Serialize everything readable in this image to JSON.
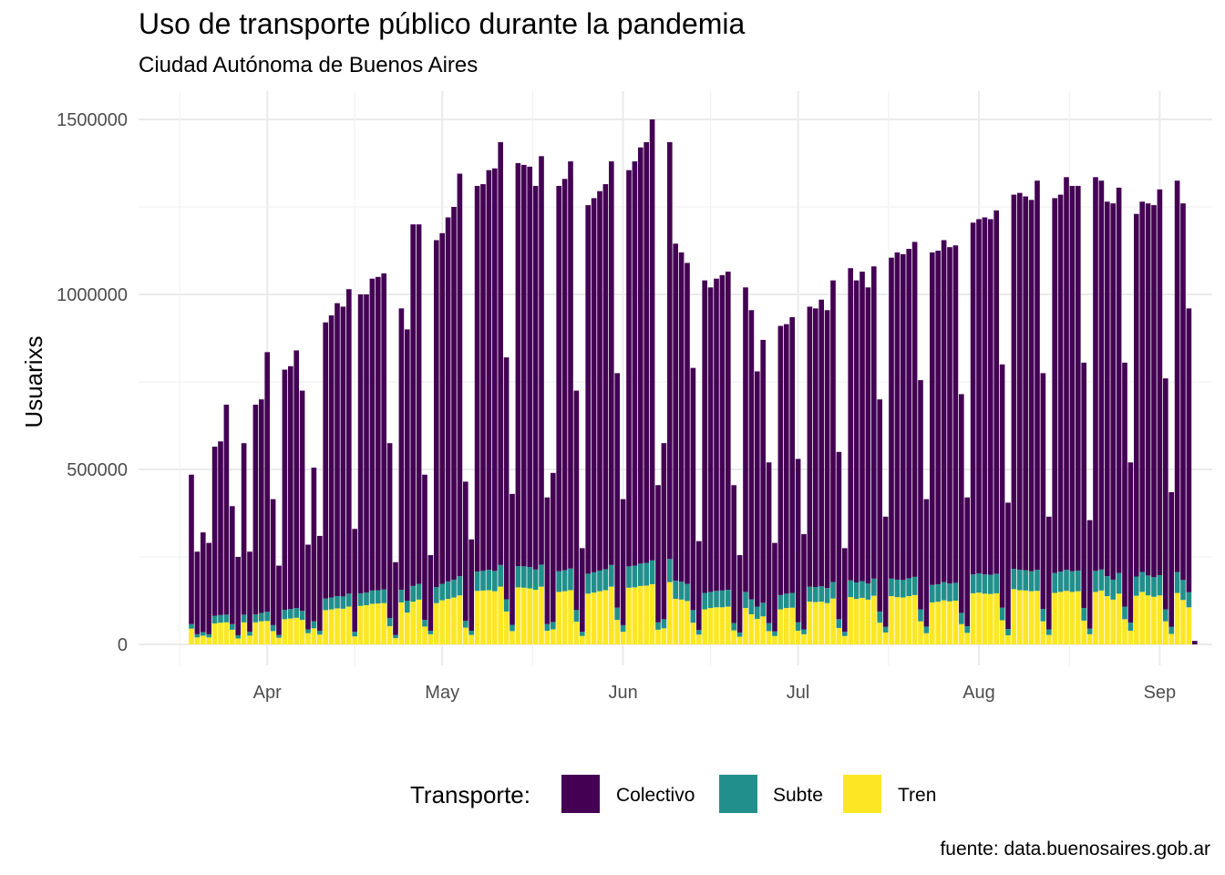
{
  "chart_data": {
    "type": "bar",
    "stacked": true,
    "title": "Uso de transporte público durante la pandemia",
    "subtitle": "Ciudad Autónoma de Buenos Aires",
    "caption": "fuente: data.buenosaires.gob.ar",
    "xlabel": "",
    "ylabel": "Usuarixs",
    "ylim": [
      0,
      1500000
    ],
    "y_ticks": [
      "0",
      "500000",
      "1000000",
      "1500000"
    ],
    "y_tick_values": [
      0,
      500000,
      1000000,
      1500000
    ],
    "x_ticks": [
      "Apr",
      "May",
      "Jun",
      "Jul",
      "Aug",
      "Sep"
    ],
    "x_tick_dates": [
      "2020-04-01",
      "2020-05-01",
      "2020-06-01",
      "2020-07-01",
      "2020-08-01",
      "2020-09-01"
    ],
    "date_range": [
      "2020-03-19",
      "2020-09-04"
    ],
    "grid": true,
    "legend": {
      "title": "Transporte:",
      "position": "bottom"
    },
    "series": [
      {
        "name": "Colectivo",
        "color": "#440154"
      },
      {
        "name": "Subte",
        "color": "#21908C"
      },
      {
        "name": "Tren",
        "color": "#FDE725"
      }
    ],
    "totals": [
      485000,
      265000,
      320000,
      290000,
      565000,
      580000,
      685000,
      395000,
      250000,
      575000,
      265000,
      685000,
      700000,
      835000,
      415000,
      225000,
      785000,
      795000,
      840000,
      725000,
      285000,
      505000,
      310000,
      920000,
      940000,
      975000,
      965000,
      1015000,
      330000,
      1000000,
      1000000,
      1045000,
      1050000,
      1060000,
      575000,
      235000,
      960000,
      900000,
      1200000,
      1200000,
      485000,
      255000,
      1155000,
      1175000,
      1220000,
      1250000,
      1345000,
      465000,
      300000,
      1310000,
      1315000,
      1355000,
      1360000,
      1435000,
      820000,
      430000,
      1375000,
      1370000,
      1365000,
      1310000,
      1395000,
      420000,
      490000,
      1310000,
      1330000,
      1380000,
      725000,
      275000,
      1255000,
      1275000,
      1295000,
      1315000,
      1380000,
      775000,
      415000,
      1355000,
      1380000,
      1420000,
      1435000,
      1500000,
      455000,
      575000,
      1435000,
      1145000,
      1120000,
      1090000,
      790000,
      295000,
      1040000,
      1020000,
      1045000,
      1055000,
      1065000,
      455000,
      255000,
      1020000,
      955000,
      780000,
      870000,
      520000,
      290000,
      910000,
      915000,
      935000,
      530000,
      315000,
      965000,
      960000,
      985000,
      955000,
      1040000,
      550000,
      275000,
      1075000,
      1040000,
      1065000,
      1020000,
      1080000,
      700000,
      365000,
      1105000,
      1120000,
      1115000,
      1130000,
      1150000,
      755000,
      415000,
      1120000,
      1125000,
      1155000,
      1135000,
      1140000,
      715000,
      420000,
      1205000,
      1215000,
      1220000,
      1215000,
      1240000,
      800000,
      405000,
      1285000,
      1290000,
      1280000,
      1270000,
      1325000,
      775000,
      365000,
      1275000,
      1285000,
      1335000,
      1310000,
      1310000,
      805000,
      355000,
      1335000,
      1325000,
      1265000,
      1260000,
      1305000,
      805000,
      520000,
      1230000,
      1265000,
      1260000,
      1255000,
      1300000,
      760000,
      435000,
      1325000,
      1260000,
      960000,
      10000
    ],
    "subte": [
      13000,
      9000,
      10000,
      9000,
      22000,
      22000,
      22000,
      16000,
      9000,
      22000,
      11000,
      23000,
      24000,
      26000,
      17000,
      8000,
      27000,
      27000,
      28000,
      26000,
      11000,
      20000,
      11000,
      33000,
      34000,
      35000,
      35000,
      37000,
      13000,
      36000,
      36000,
      38000,
      38000,
      39000,
      23000,
      9000,
      36000,
      34000,
      45000,
      45000,
      19000,
      10000,
      46000,
      47000,
      50000,
      51000,
      55000,
      19000,
      12000,
      55000,
      56000,
      58000,
      58000,
      62000,
      35000,
      18000,
      61000,
      61000,
      61000,
      58000,
      63000,
      19000,
      21000,
      59000,
      60000,
      62000,
      33000,
      12000,
      57000,
      58000,
      59000,
      60000,
      62000,
      35000,
      19000,
      61000,
      62000,
      64000,
      65000,
      68000,
      21000,
      26000,
      66000,
      52000,
      51000,
      49000,
      36000,
      13000,
      47000,
      46000,
      47000,
      48000,
      48000,
      21000,
      12000,
      46000,
      43000,
      35000,
      39000,
      23000,
      13000,
      41000,
      41000,
      42000,
      24000,
      14000,
      43000,
      43000,
      44000,
      43000,
      47000,
      25000,
      12000,
      48000,
      47000,
      48000,
      46000,
      49000,
      32000,
      16000,
      50000,
      50000,
      50000,
      51000,
      52000,
      34000,
      19000,
      50000,
      50000,
      52000,
      51000,
      51000,
      32000,
      19000,
      54000,
      55000,
      55000,
      55000,
      56000,
      36000,
      18000,
      58000,
      58000,
      58000,
      57000,
      60000,
      35000,
      16000,
      57000,
      58000,
      60000,
      59000,
      59000,
      36000,
      16000,
      60000,
      60000,
      57000,
      57000,
      59000,
      36000,
      23000,
      55000,
      57000,
      57000,
      56000,
      58000,
      34000,
      20000,
      60000,
      57000,
      43000,
      0
    ],
    "tren": [
      45000,
      20000,
      25000,
      20000,
      60000,
      62000,
      63000,
      42000,
      17000,
      63000,
      25000,
      63000,
      66000,
      67000,
      38000,
      19000,
      72000,
      74000,
      76000,
      70000,
      32000,
      46000,
      28000,
      98000,
      100000,
      103000,
      102000,
      108000,
      23000,
      110000,
      112000,
      116000,
      117000,
      118000,
      52000,
      18000,
      120000,
      91000,
      122000,
      128000,
      51000,
      29000,
      118000,
      126000,
      130000,
      134000,
      140000,
      48000,
      27000,
      153000,
      154000,
      155000,
      152000,
      165000,
      94000,
      38000,
      163000,
      162000,
      160000,
      156000,
      165000,
      39000,
      43000,
      150000,
      152000,
      155000,
      65000,
      24000,
      145000,
      148000,
      152000,
      155000,
      165000,
      70000,
      36000,
      162000,
      163000,
      167000,
      168000,
      172000,
      42000,
      46000,
      178000,
      130000,
      128000,
      124000,
      62000,
      28000,
      100000,
      104000,
      106000,
      106000,
      108000,
      40000,
      22000,
      104000,
      86000,
      73000,
      80000,
      38000,
      24000,
      100000,
      104000,
      105000,
      39000,
      29000,
      122000,
      121000,
      122000,
      118000,
      131000,
      47000,
      24000,
      135000,
      130000,
      133000,
      128000,
      139000,
      62000,
      34000,
      138000,
      135000,
      134000,
      138000,
      141000,
      66000,
      32000,
      120000,
      122000,
      126000,
      123000,
      125000,
      58000,
      33000,
      146000,
      148000,
      145000,
      144000,
      146000,
      69000,
      26000,
      158000,
      155000,
      154000,
      152000,
      153000,
      66000,
      27000,
      147000,
      150000,
      153000,
      150000,
      152000,
      68000,
      29000,
      150000,
      154000,
      138000,
      128000,
      145000,
      72000,
      39000,
      139000,
      150000,
      140000,
      136000,
      140000,
      66000,
      30000,
      147000,
      127000,
      106000,
      0
    ]
  }
}
